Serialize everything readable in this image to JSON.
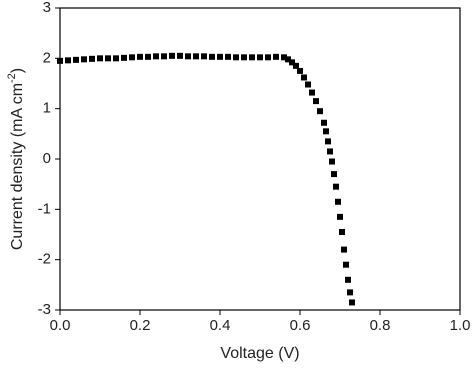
{
  "chart_data": {
    "type": "scatter",
    "xlabel": "Voltage (V)",
    "ylabel": [
      "Current density (mA cm",
      "-2",
      ")"
    ],
    "x": [
      0.0,
      0.02,
      0.04,
      0.06,
      0.08,
      0.1,
      0.12,
      0.14,
      0.16,
      0.18,
      0.2,
      0.22,
      0.24,
      0.26,
      0.28,
      0.3,
      0.32,
      0.34,
      0.36,
      0.38,
      0.4,
      0.42,
      0.44,
      0.46,
      0.48,
      0.5,
      0.52,
      0.54,
      0.56,
      0.57,
      0.58,
      0.59,
      0.6,
      0.61,
      0.62,
      0.63,
      0.64,
      0.65,
      0.66,
      0.665,
      0.67,
      0.675,
      0.68,
      0.685,
      0.69,
      0.695,
      0.7,
      0.705,
      0.71,
      0.715,
      0.72,
      0.725,
      0.73
    ],
    "values": [
      1.95,
      1.96,
      1.97,
      1.98,
      1.99,
      2.0,
      2.0,
      2.0,
      2.01,
      2.02,
      2.03,
      2.03,
      2.04,
      2.04,
      2.05,
      2.05,
      2.04,
      2.04,
      2.04,
      2.03,
      2.03,
      2.03,
      2.02,
      2.02,
      2.02,
      2.02,
      2.02,
      2.03,
      2.02,
      1.98,
      1.92,
      1.85,
      1.75,
      1.62,
      1.48,
      1.32,
      1.15,
      0.95,
      0.72,
      0.55,
      0.35,
      0.15,
      -0.05,
      -0.3,
      -0.55,
      -0.85,
      -1.15,
      -1.45,
      -1.8,
      -2.1,
      -2.4,
      -2.65,
      -2.85
    ],
    "color": "#000000",
    "xlim": [
      0,
      1
    ],
    "xticks": [
      {
        "value": 0,
        "label": "0.0"
      },
      0.2,
      0.4,
      0.6,
      0.8,
      {
        "value": 1,
        "label": "1.0"
      }
    ],
    "ylim": [
      -3,
      3
    ],
    "yticks": [
      -3,
      -2,
      -1,
      0,
      1,
      2,
      3
    ]
  }
}
